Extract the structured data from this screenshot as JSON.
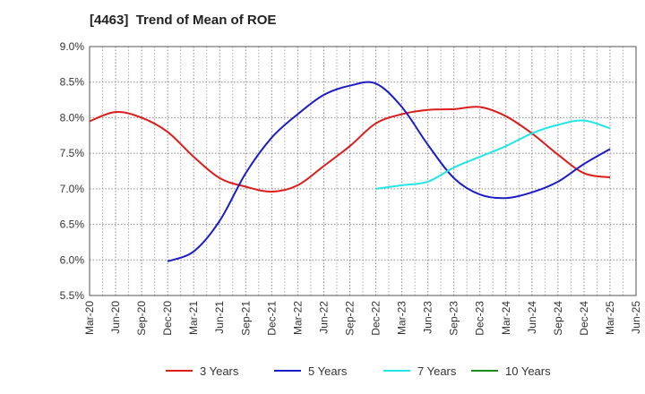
{
  "chart_data": {
    "type": "line",
    "title": "[4463]  Trend of Mean of ROE",
    "xlabel": "",
    "ylabel": "",
    "x_ticks": [
      "Mar-20",
      "Jun-20",
      "Sep-20",
      "Dec-20",
      "Mar-21",
      "Jun-21",
      "Sep-21",
      "Dec-21",
      "Mar-22",
      "Jun-22",
      "Sep-22",
      "Dec-22",
      "Mar-23",
      "Jun-23",
      "Sep-23",
      "Dec-23",
      "Mar-24",
      "Jun-24",
      "Sep-24",
      "Dec-24",
      "Mar-25",
      "Jun-25"
    ],
    "y_ticks": [
      "5.5%",
      "6.0%",
      "6.5%",
      "7.0%",
      "7.5%",
      "8.0%",
      "8.5%",
      "9.0%"
    ],
    "ylim": [
      5.5,
      9.0
    ],
    "y_unit": "%",
    "grid": true,
    "legend_position": "bottom",
    "series": [
      {
        "name": "3 Years",
        "color": "#dd1c1c",
        "points": [
          [
            "Mar-20",
            7.95
          ],
          [
            "Jun-20",
            8.08
          ],
          [
            "Sep-20",
            8.0
          ],
          [
            "Dec-20",
            7.8
          ],
          [
            "Mar-21",
            7.45
          ],
          [
            "Jun-21",
            7.15
          ],
          [
            "Sep-21",
            7.03
          ],
          [
            "Dec-21",
            6.96
          ],
          [
            "Mar-22",
            7.05
          ],
          [
            "Jun-22",
            7.32
          ],
          [
            "Sep-22",
            7.6
          ],
          [
            "Dec-22",
            7.92
          ],
          [
            "Mar-23",
            8.05
          ],
          [
            "Jun-23",
            8.11
          ],
          [
            "Sep-23",
            8.12
          ],
          [
            "Dec-23",
            8.15
          ],
          [
            "Mar-24",
            8.02
          ],
          [
            "Jun-24",
            7.78
          ],
          [
            "Sep-24",
            7.48
          ],
          [
            "Dec-24",
            7.22
          ],
          [
            "Mar-25",
            7.16
          ]
        ]
      },
      {
        "name": "5 Years",
        "color": "#1c1cc8",
        "points": [
          [
            "Dec-20",
            5.98
          ],
          [
            "Mar-21",
            6.12
          ],
          [
            "Jun-21",
            6.55
          ],
          [
            "Sep-21",
            7.22
          ],
          [
            "Dec-21",
            7.72
          ],
          [
            "Mar-22",
            8.05
          ],
          [
            "Jun-22",
            8.32
          ],
          [
            "Sep-22",
            8.45
          ],
          [
            "Dec-22",
            8.48
          ],
          [
            "Mar-23",
            8.15
          ],
          [
            "Jun-23",
            7.62
          ],
          [
            "Sep-23",
            7.15
          ],
          [
            "Dec-23",
            6.92
          ],
          [
            "Mar-24",
            6.87
          ],
          [
            "Jun-24",
            6.95
          ],
          [
            "Sep-24",
            7.1
          ],
          [
            "Dec-24",
            7.35
          ],
          [
            "Mar-25",
            7.56
          ]
        ]
      },
      {
        "name": "7 Years",
        "color": "#22e5e5",
        "points": [
          [
            "Dec-22",
            7.0
          ],
          [
            "Mar-23",
            7.05
          ],
          [
            "Jun-23",
            7.1
          ],
          [
            "Sep-23",
            7.3
          ],
          [
            "Dec-23",
            7.45
          ],
          [
            "Mar-24",
            7.6
          ],
          [
            "Jun-24",
            7.78
          ],
          [
            "Sep-24",
            7.9
          ],
          [
            "Dec-24",
            7.96
          ],
          [
            "Mar-25",
            7.85
          ]
        ]
      },
      {
        "name": "10 Years",
        "color": "#1c8c1c",
        "points": []
      }
    ]
  }
}
